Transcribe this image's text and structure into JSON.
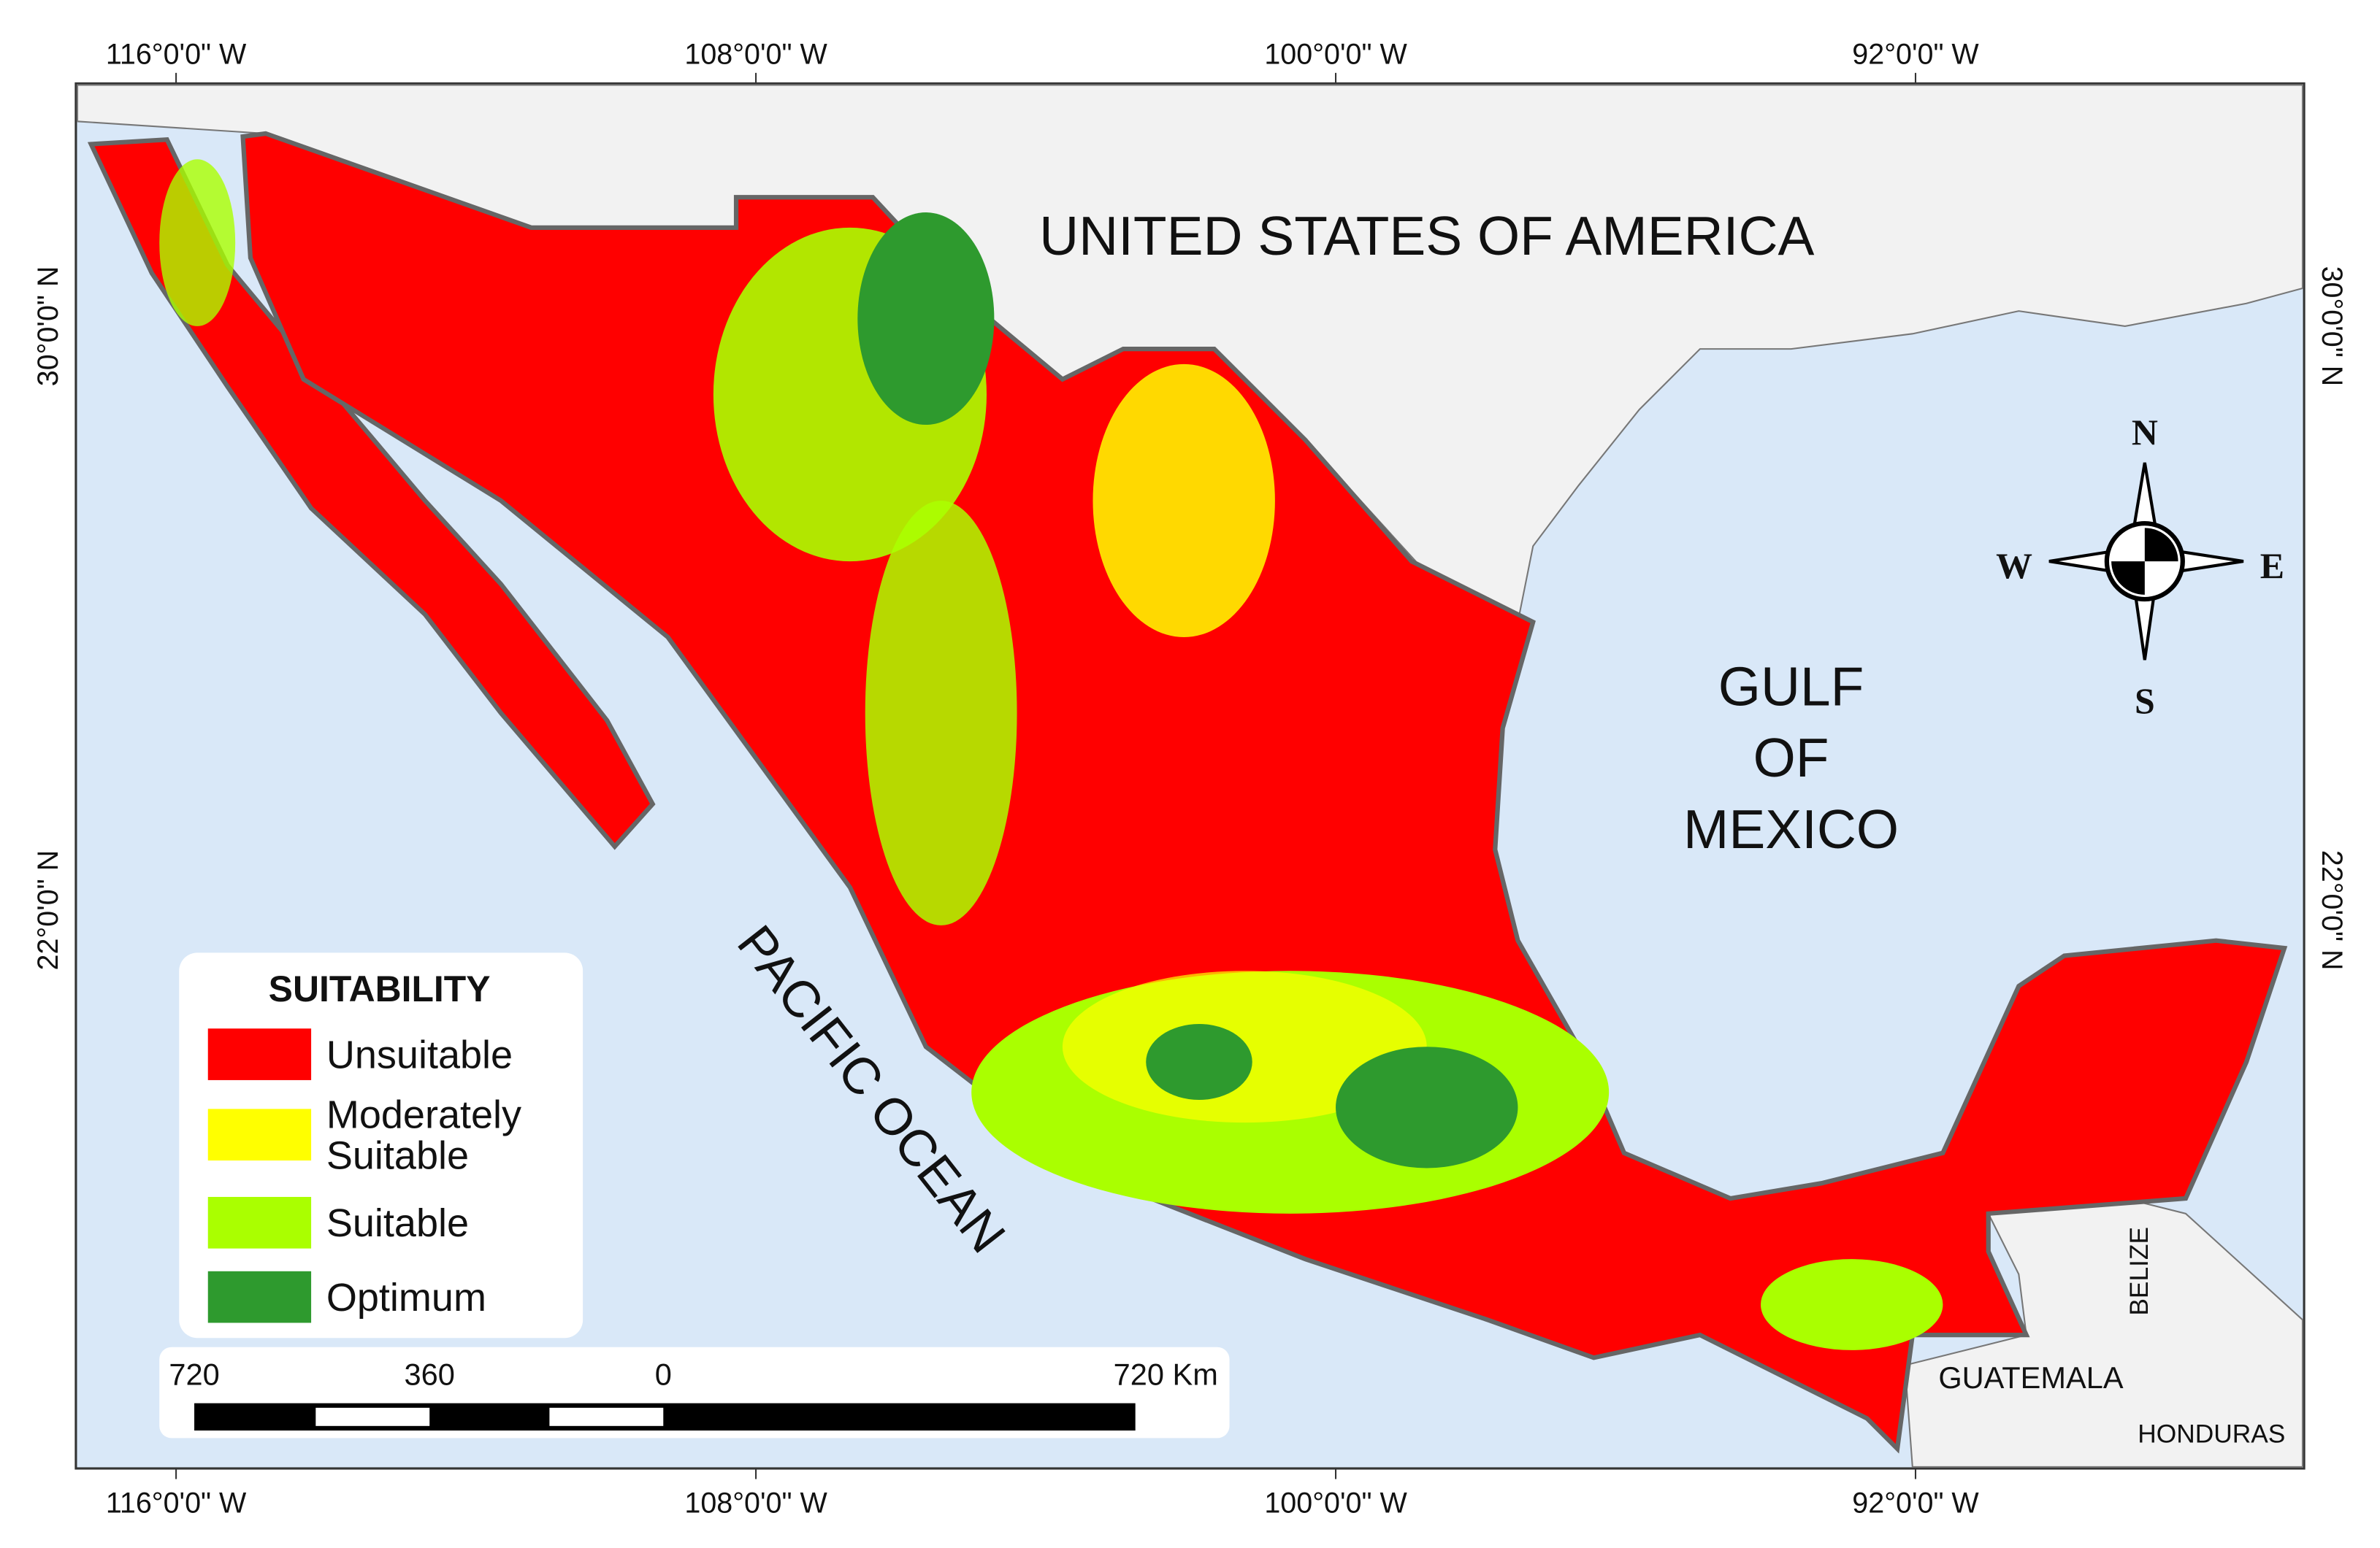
{
  "graticule": {
    "top": [
      "116°0'0\" W",
      "108°0'0\" W",
      "100°0'0\" W",
      "92°0'0\" W"
    ],
    "bottom": [
      "116°0'0\" W",
      "108°0'0\" W",
      "100°0'0\" W",
      "92°0'0\" W"
    ],
    "left": [
      "30°0'0\" N",
      "22°0'0\" N"
    ],
    "right": [
      "30°0'0\" N",
      "22°0'0\" N"
    ]
  },
  "places": {
    "usa": "UNITED STATES OF AMERICA",
    "gulf": [
      "GULF",
      "OF",
      "MEXICO"
    ],
    "pacific": "PACIFIC OCEAN",
    "guatemala": "GUATEMALA",
    "belize": "BELIZE",
    "honduras": "HONDURAS"
  },
  "compass": {
    "n": "N",
    "e": "E",
    "s": "S",
    "w": "W"
  },
  "legend": {
    "title": "SUITABILITY",
    "items": [
      {
        "label": [
          "Unsuitable"
        ],
        "color": "#ff0000"
      },
      {
        "label": [
          "Moderately",
          "Suitable"
        ],
        "color": "#ffff00"
      },
      {
        "label": [
          "Suitable"
        ],
        "color": "#aaff00"
      },
      {
        "label": [
          "Optimum"
        ],
        "color": "#2e9a2e"
      }
    ]
  },
  "scale_bar": [
    "720",
    "360",
    "0",
    "720 Km"
  ]
}
